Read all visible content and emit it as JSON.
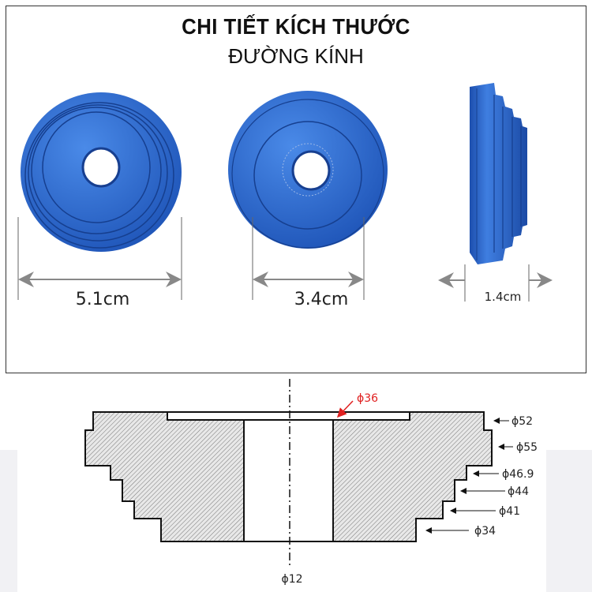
{
  "header": {
    "title": "CHI TIẾT KÍCH THƯỚC",
    "subtitle": "ĐƯỜNG KÍNH"
  },
  "photos": {
    "color": "#2f6fd6",
    "dimensions": [
      {
        "label": "5.1cm",
        "view": "back"
      },
      {
        "label": "3.4cm",
        "view": "front"
      },
      {
        "label": "1.4cm",
        "view": "side"
      }
    ]
  },
  "drawing": {
    "recess_label": "ϕ36",
    "recess_label_color": "#e02020",
    "bore_label": "ϕ12",
    "step_labels": [
      "ϕ52",
      "ϕ55",
      "ϕ46.9",
      "ϕ44",
      "ϕ41",
      "ϕ34"
    ]
  }
}
